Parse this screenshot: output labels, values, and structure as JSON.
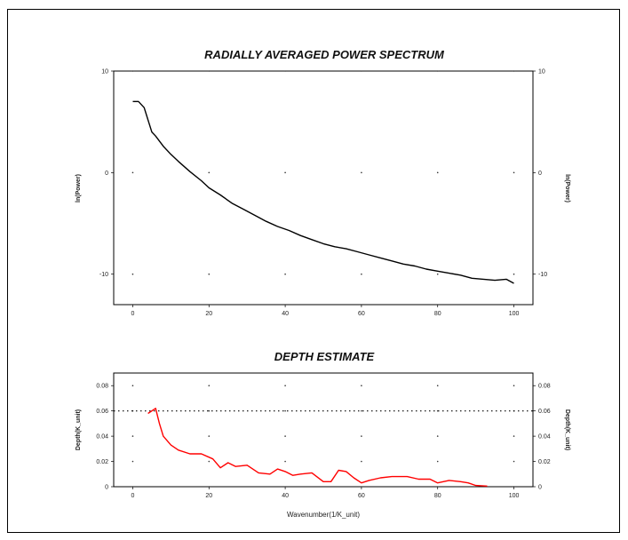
{
  "chart_data": [
    {
      "type": "line",
      "title": "RADIALLY AVERAGED POWER SPECTRUM",
      "xlabel": "",
      "ylabel": "ln(Power)",
      "ylabel_right": "ln(Power)",
      "xlim": [
        -5,
        105
      ],
      "ylim": [
        -13,
        10
      ],
      "xticks": [
        0,
        20,
        40,
        60,
        80,
        100
      ],
      "yticks": [
        10,
        0,
        -10
      ],
      "ytick_labels": [
        "10",
        "0",
        "-10"
      ],
      "grid": "dotted",
      "series": [
        {
          "color": "#000000",
          "x": [
            0,
            1.5,
            3,
            4,
            5,
            6,
            8,
            10,
            12,
            15,
            18,
            20,
            23,
            26,
            29,
            32,
            35,
            38,
            41,
            44,
            47,
            50,
            53,
            56,
            59,
            62,
            65,
            68,
            71,
            74,
            77,
            80,
            83,
            86,
            89,
            92,
            95,
            98,
            100
          ],
          "y": [
            7.0,
            7.0,
            6.4,
            5.2,
            4.0,
            3.6,
            2.6,
            1.8,
            1.1,
            0.1,
            -0.8,
            -1.5,
            -2.2,
            -3.0,
            -3.6,
            -4.2,
            -4.8,
            -5.3,
            -5.7,
            -6.2,
            -6.6,
            -7.0,
            -7.3,
            -7.5,
            -7.8,
            -8.1,
            -8.4,
            -8.7,
            -9.0,
            -9.2,
            -9.5,
            -9.7,
            -9.9,
            -10.1,
            -10.4,
            -10.5,
            -10.6,
            -10.5,
            -10.9
          ]
        }
      ]
    },
    {
      "type": "line",
      "title": "DEPTH ESTIMATE",
      "xlabel": "Wavenumber(1/K_unit)",
      "ylabel": "Depth(K_unit)",
      "ylabel_right": "Depth(K_unit)",
      "xlim": [
        -5,
        105
      ],
      "ylim": [
        0,
        0.09
      ],
      "xticks": [
        0,
        20,
        40,
        60,
        80,
        100
      ],
      "yticks": [
        0.08,
        0.06,
        0.04,
        0.02,
        0
      ],
      "ytick_labels": [
        "0.08",
        "0.06",
        "0.04",
        "0.02",
        "0"
      ],
      "grid": "dotted",
      "reference_line": 0.06,
      "series": [
        {
          "color": "#ff0000",
          "x": [
            4,
            6,
            7,
            8,
            10,
            12,
            15,
            18,
            21,
            23,
            25,
            27,
            30,
            33,
            36,
            38,
            40,
            42,
            44,
            47,
            50,
            52,
            54,
            56,
            58,
            60,
            62,
            65,
            68,
            72,
            75,
            78,
            80,
            83,
            86,
            88,
            90,
            93
          ],
          "y": [
            0.058,
            0.062,
            0.05,
            0.04,
            0.033,
            0.029,
            0.026,
            0.026,
            0.022,
            0.015,
            0.019,
            0.016,
            0.017,
            0.011,
            0.01,
            0.014,
            0.012,
            0.009,
            0.01,
            0.011,
            0.004,
            0.004,
            0.013,
            0.012,
            0.007,
            0.003,
            0.005,
            0.007,
            0.008,
            0.008,
            0.006,
            0.006,
            0.003,
            0.005,
            0.004,
            0.003,
            0.001,
            0.0005
          ]
        }
      ]
    }
  ]
}
